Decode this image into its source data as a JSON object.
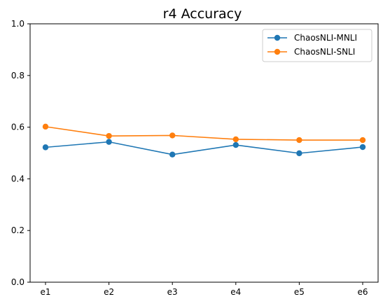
{
  "chart_data": {
    "type": "line",
    "title": "r4 Accuracy",
    "xlabel": "",
    "ylabel": "",
    "categories": [
      "e1",
      "e2",
      "e3",
      "e4",
      "e5",
      "e6"
    ],
    "ylim": [
      0.0,
      1.0
    ],
    "yticks": [
      "0.0",
      "0.2",
      "0.4",
      "0.6",
      "0.8",
      "1.0"
    ],
    "grid": false,
    "legend_position": "top-right",
    "series": [
      {
        "name": "ChaosNLI-MNLI",
        "color": "#1f77b4",
        "values": [
          0.522,
          0.543,
          0.494,
          0.531,
          0.499,
          0.523
        ]
      },
      {
        "name": "ChaosNLI-SNLI",
        "color": "#ff7f0e",
        "values": [
          0.602,
          0.566,
          0.568,
          0.553,
          0.55,
          0.55
        ]
      }
    ]
  }
}
